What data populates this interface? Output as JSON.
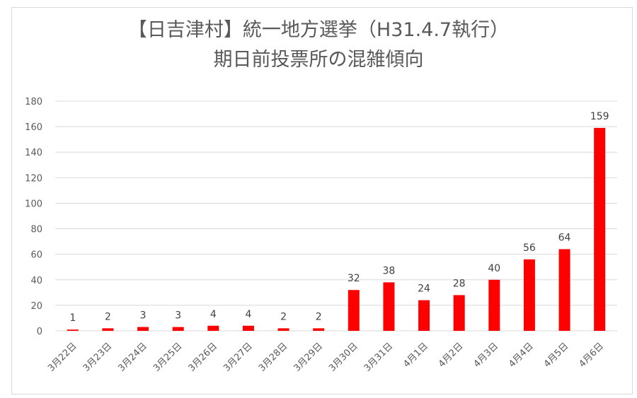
{
  "chart_data": {
    "type": "bar",
    "title": "【日吉津村】統一地方選挙（H31.4.7執行）",
    "subtitle": "期日前投票所の混雑傾向",
    "xlabel": "",
    "ylabel": "",
    "ylim": [
      0,
      180
    ],
    "yticks": [
      0,
      20,
      40,
      60,
      80,
      100,
      120,
      140,
      160,
      180
    ],
    "grid": true,
    "legend": "none",
    "bar_color": "#ff0000",
    "grid_color": "#d9d9d9",
    "categories": [
      "3月22日",
      "3月23日",
      "3月24日",
      "3月25日",
      "3月26日",
      "3月27日",
      "3月28日",
      "3月29日",
      "3月30日",
      "3月31日",
      "4月1日",
      "4月2日",
      "4月3日",
      "4月4日",
      "4月5日",
      "4月6日"
    ],
    "values": [
      1,
      2,
      3,
      3,
      4,
      4,
      2,
      2,
      32,
      38,
      24,
      28,
      40,
      56,
      64,
      159
    ]
  }
}
